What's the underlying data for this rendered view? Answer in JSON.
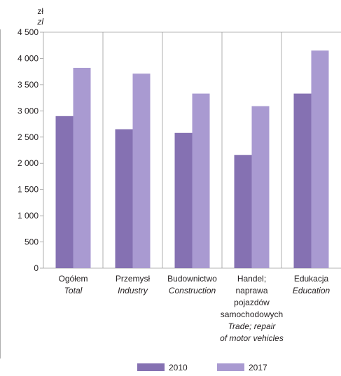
{
  "chart_data": {
    "type": "bar",
    "unit_pl": "zł",
    "unit_en": "zl",
    "categories": [
      {
        "pl": [
          "Ogółem"
        ],
        "en": [
          "Total"
        ]
      },
      {
        "pl": [
          "Przemysł"
        ],
        "en": [
          "Industry"
        ]
      },
      {
        "pl": [
          "Budownictwo"
        ],
        "en": [
          "Construction"
        ]
      },
      {
        "pl": [
          "Handel;",
          "naprawa",
          "pojazdów",
          "samochodowych"
        ],
        "en": [
          "Trade; repair",
          "of motor vehicles"
        ]
      },
      {
        "pl": [
          "Edukacja"
        ],
        "en": [
          "Education"
        ]
      }
    ],
    "series": [
      {
        "name": "2010",
        "color": "#8571b2",
        "values": [
          2900,
          2650,
          2580,
          2160,
          3330
        ]
      },
      {
        "name": "2017",
        "color": "#a99ad1",
        "values": [
          3820,
          3710,
          3330,
          3090,
          4150
        ]
      }
    ],
    "yticks": [
      0,
      500,
      1000,
      1500,
      2000,
      2500,
      3000,
      3500,
      4000,
      4500
    ],
    "ytick_labels": [
      "0",
      "500",
      "1 000",
      "1 500",
      "2 000",
      "2 500",
      "3 000",
      "3 500",
      "4 000",
      "4 500"
    ],
    "ylim": [
      0,
      4500
    ],
    "legend_position": "bottom",
    "grid": "vertical separators between categories"
  }
}
